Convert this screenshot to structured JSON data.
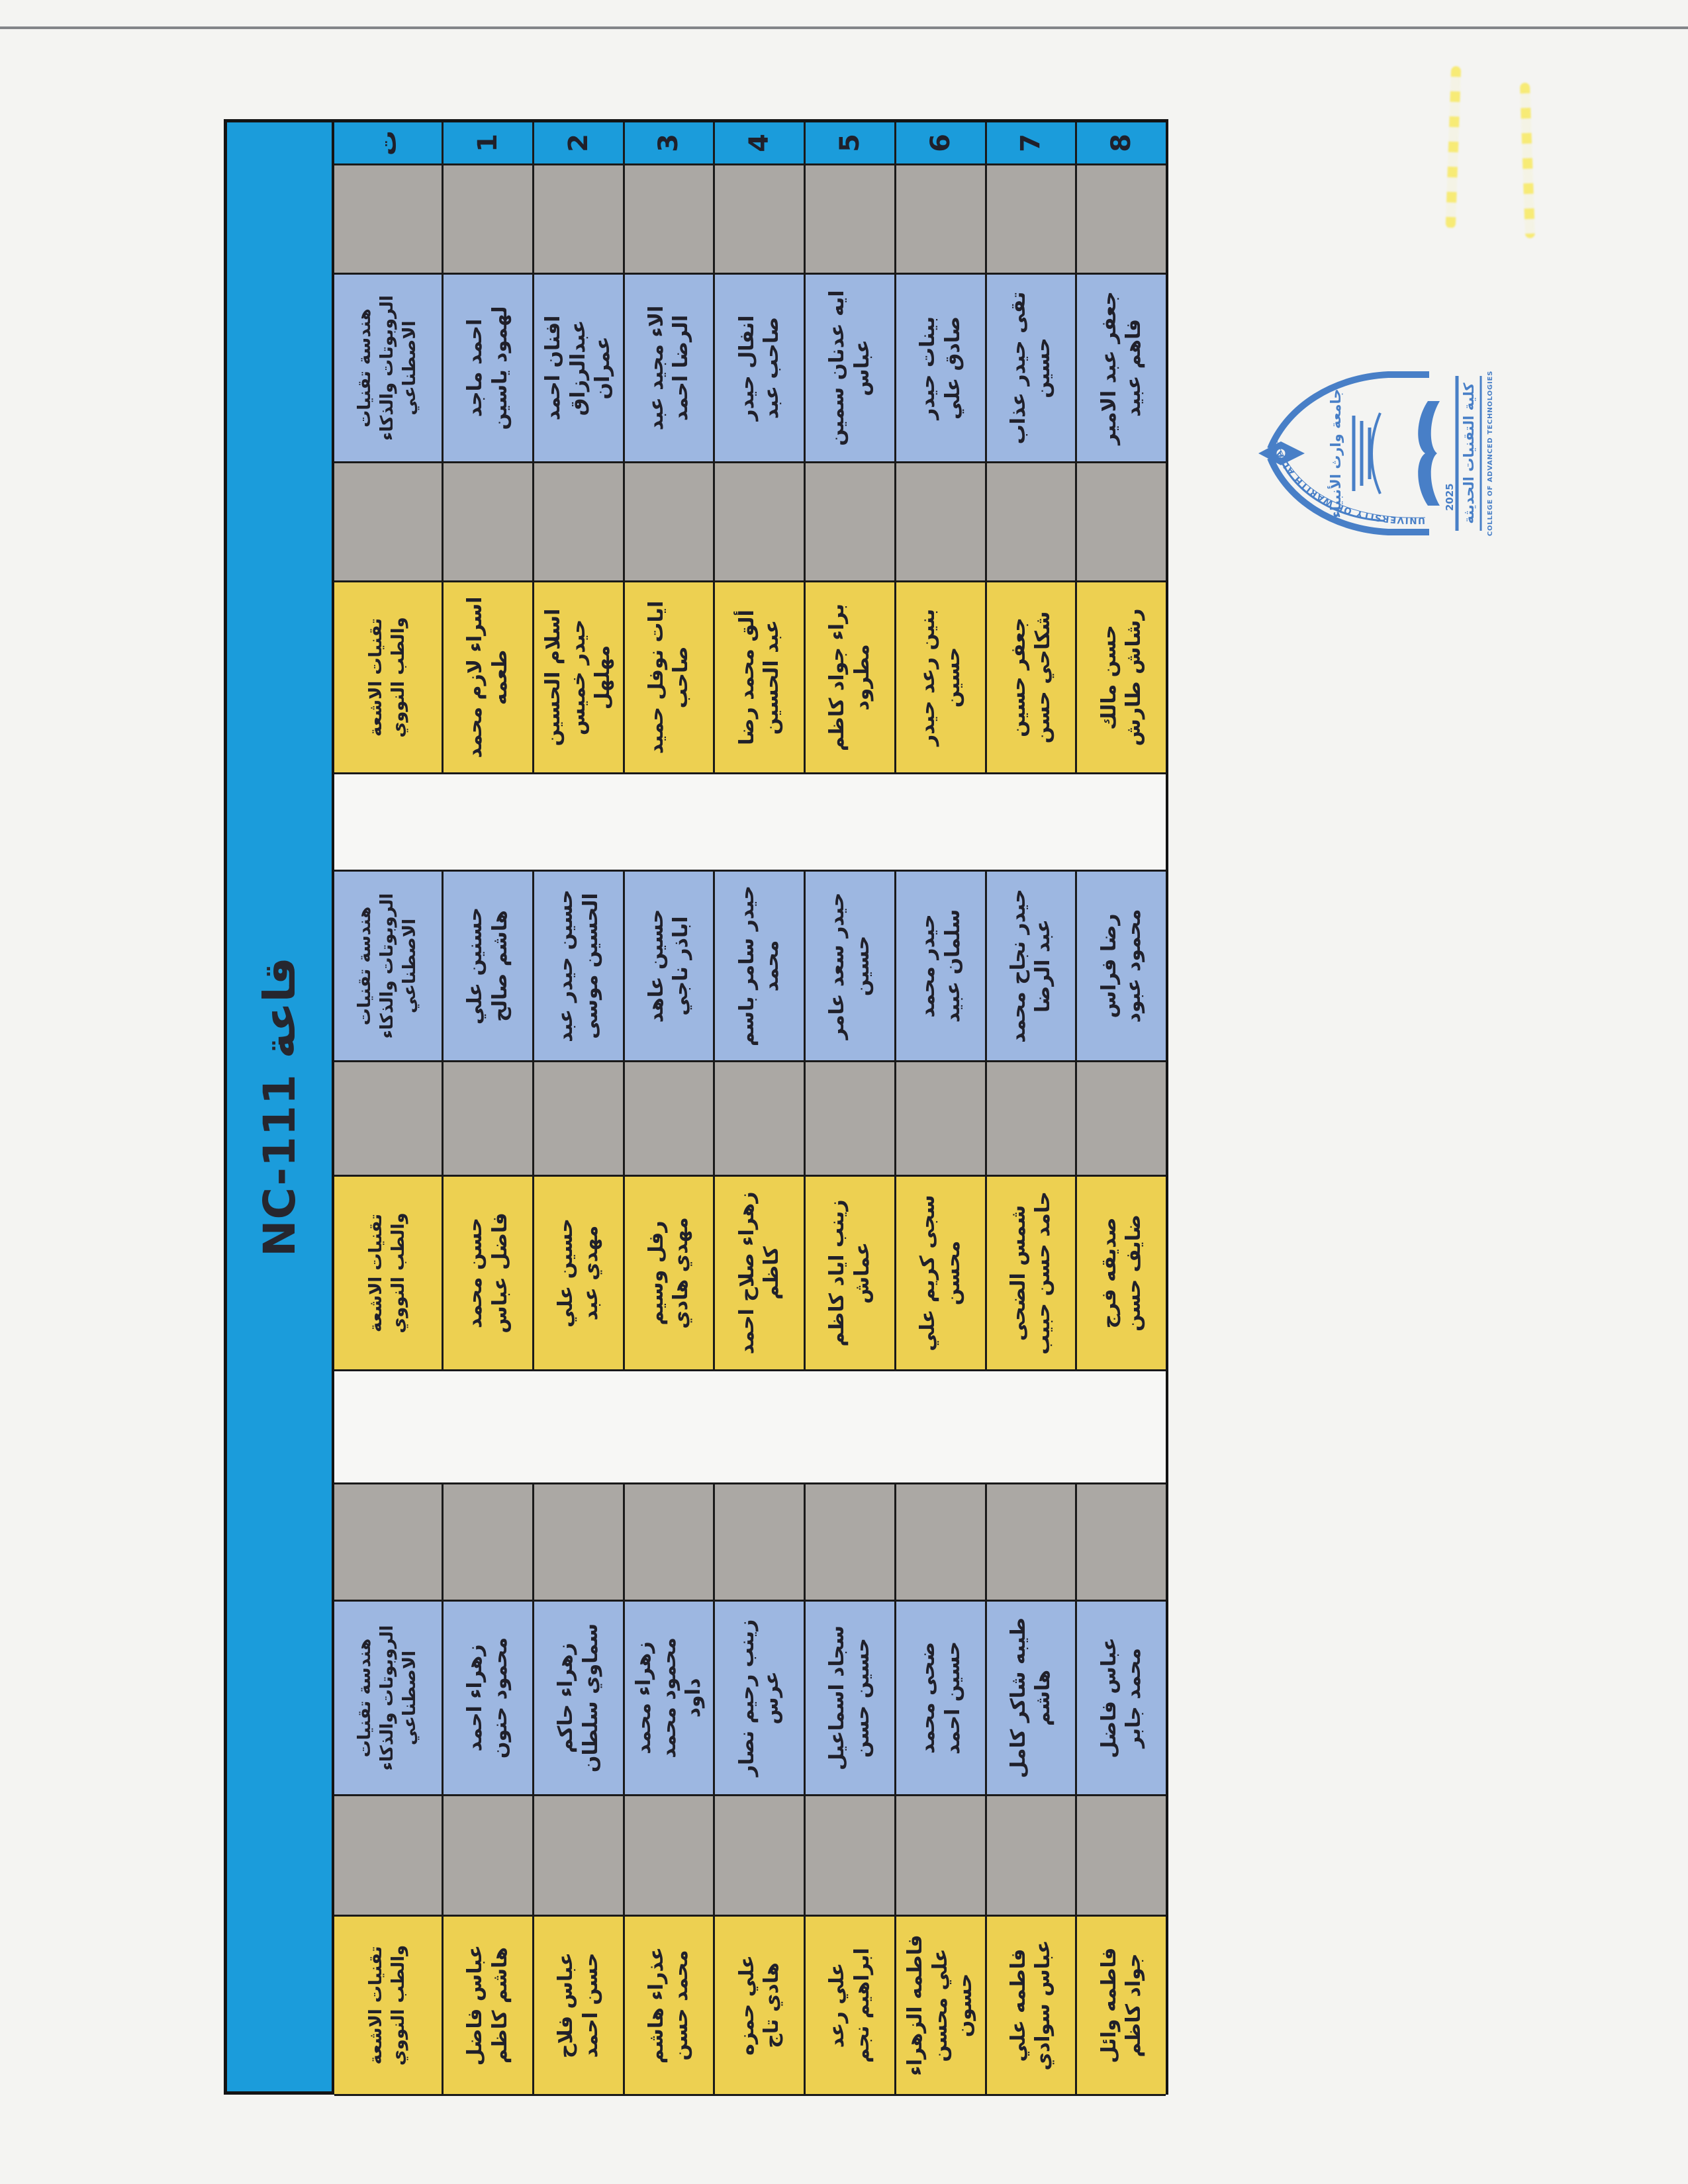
{
  "hall": {
    "title": "قاعة NC-111",
    "serial_header": "ت",
    "seat_numbers": [
      "1",
      "2",
      "3",
      "4",
      "5",
      "6",
      "7",
      "8"
    ]
  },
  "departments": {
    "robotics": "هندسة تقنيات الروبوتات والذكاء الاصطناعي",
    "radiology": "تقنيات الاشعة والطب النووي"
  },
  "table": {
    "columns": [
      {
        "kind": "serial"
      },
      {
        "kind": "empty",
        "color": "gray"
      },
      {
        "kind": "dept",
        "dept": "robotics",
        "students": [
          "احمد ماجد لهمود ياسين",
          "افنان احمد عبدالرزاق عمران",
          "الاء مجيد عبد الرضا احمد",
          "انفال حيدر صاحب عبد",
          "ايه عدنان سمين عباس",
          "بينات حيدر صادق علي",
          "تقى حيدر عذاب حسين",
          "جعفر عبد الامير فاهم عبيد"
        ]
      },
      {
        "kind": "empty",
        "color": "gray"
      },
      {
        "kind": "dept",
        "dept": "radiology",
        "students": [
          "اسراء لازم محمد طعمه",
          "اسلام الحسين حيدر خميس مهلهل",
          "ايات نوفل حميد صاحب",
          "ألق محمد رضا عبد الحسين",
          "براء جواد كاظم مطرود",
          "بنين رعد حيدر حسين",
          "جعفر حسين شكاحي حسن",
          "حسن مالك رشاش طارش"
        ]
      },
      {
        "kind": "empty",
        "color": "white"
      },
      {
        "kind": "dept",
        "dept": "robotics",
        "students": [
          "حسنين علي هاشم صالح",
          "حسين حيدر عبد الحسين موسى",
          "حسين عاهد اباذر ناجي",
          "حيدر سامر باسم محمد",
          "حيدر سعد عامر حسين",
          "حيدر محمد سلمان عبيد",
          "حيدر نجاح محمد عبد الرضا",
          "رضا فراس محمود عبود"
        ]
      },
      {
        "kind": "empty",
        "color": "gray"
      },
      {
        "kind": "dept",
        "dept": "radiology",
        "students": [
          "حسن محمد فاضل عباس",
          "حسين علي مهدي عبد",
          "رفل وسيم مهدي هادي",
          "زهراء صلاح احمد كاظم",
          "زينب اياد كاظم عماش",
          "سجى كريم علي محسن",
          "شمس الضحى حامد حسن حبيب",
          "صديقه فرج ضايف حسن"
        ]
      },
      {
        "kind": "empty",
        "color": "white"
      },
      {
        "kind": "empty",
        "color": "gray"
      },
      {
        "kind": "dept",
        "dept": "robotics",
        "students": [
          "زهراء احمد محمود حنون",
          "زهراء حاكم سماوي سلطان",
          "زهراء محمد محمود محمد داود",
          "زينب رحيم نصار عرس",
          "سجاد اسماعيل حسين حسن",
          "ضحى محمد حسين احمد",
          "طيبه شاكر كامل هاشم",
          "عباس فاضل محمد جابر"
        ]
      },
      {
        "kind": "empty",
        "color": "gray"
      },
      {
        "kind": "dept",
        "dept": "radiology",
        "students": [
          "عباس فاضل هاشم كاظم",
          "عباس فلاح حسن احمد",
          "عذراء هاشم محمد حسن",
          "علي حمزه هادي تاج",
          "علي رعد ابراهيم نجم",
          "فاطمه الزهراء علي محسن حسون",
          "فاطمه علي عباس سوادي",
          "فاطمه وائل جواد كاظم"
        ]
      }
    ]
  },
  "stamp": {
    "university_en": "UNIVERSITY OF WARITH AL-ANBIYAA",
    "university_ar": "جامعة وارث الأنبياء",
    "college_ar": "كلية التقنيات الحديثة",
    "college_en": "COLLEGE OF ADVANCED TECHNOLOGIES",
    "year": "2025"
  }
}
